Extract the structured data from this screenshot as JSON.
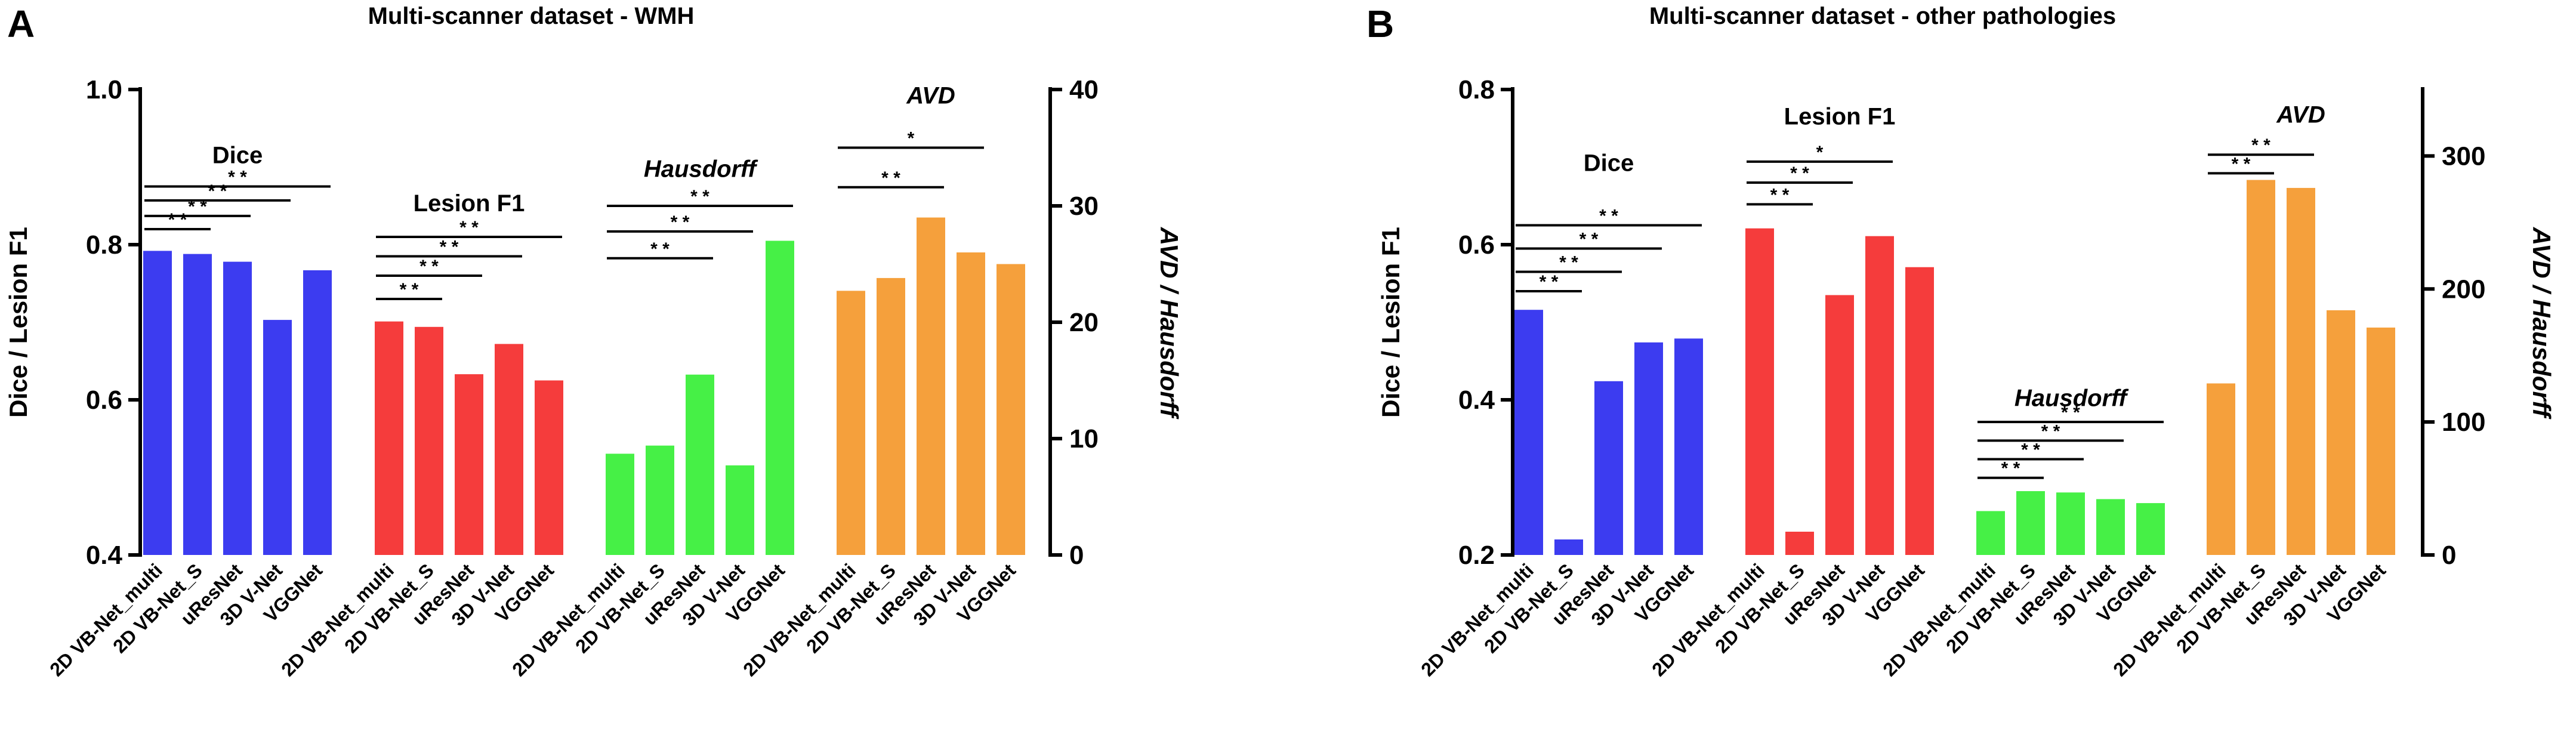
{
  "chart_data": [
    {
      "panel_letter": "A",
      "type": "bar",
      "title": "Multi-scanner dataset - WMH",
      "left_axis": {
        "label": "Dice / Lesion F1",
        "range": [
          0.4,
          1.0
        ],
        "ticks": [
          "0.4",
          "0.6",
          "0.8",
          "1.0"
        ]
      },
      "right_axis": {
        "label": "AVD / Hausdorff",
        "range": [
          0,
          40
        ],
        "ticks": [
          "0",
          "10",
          "20",
          "30",
          "40"
        ]
      },
      "groups": [
        {
          "name": "Dice",
          "italic": false,
          "axis": "left",
          "color": "#3c3cf0",
          "categories": [
            "2D VB-Net_multi",
            "2D VB-Net_S",
            "uResNet",
            "3D V-Net",
            "VGGNet"
          ],
          "values": [
            0.792,
            0.788,
            0.778,
            0.703,
            0.767
          ],
          "label_anchor": 0.905,
          "significance": [
            {
              "from": 0,
              "to": 1,
              "level": 0.82,
              "mark": "* *"
            },
            {
              "from": 0,
              "to": 2,
              "level": 0.837,
              "mark": "* *"
            },
            {
              "from": 0,
              "to": 3,
              "level": 0.857,
              "mark": "* *"
            },
            {
              "from": 0,
              "to": 4,
              "level": 0.875,
              "mark": "* *"
            }
          ]
        },
        {
          "name": "Lesion F1",
          "italic": false,
          "axis": "left",
          "color": "#f53c3c",
          "categories": [
            "2D VB-Net_multi",
            "2D VB-Net_S",
            "uResNet",
            "3D V-Net",
            "VGGNet"
          ],
          "values": [
            0.701,
            0.694,
            0.633,
            0.672,
            0.625
          ],
          "label_anchor": 0.843,
          "significance": [
            {
              "from": 0,
              "to": 1,
              "level": 0.73,
              "mark": "* *"
            },
            {
              "from": 0,
              "to": 2,
              "level": 0.76,
              "mark": "* *"
            },
            {
              "from": 0,
              "to": 3,
              "level": 0.785,
              "mark": "* *"
            },
            {
              "from": 0,
              "to": 4,
              "level": 0.81,
              "mark": "* *"
            }
          ]
        },
        {
          "name": "Hausdorff",
          "italic": true,
          "axis": "right",
          "color": "#46f046",
          "categories": [
            "2D VB-Net_multi",
            "2D VB-Net_S",
            "uResNet",
            "3D V-Net",
            "VGGNet"
          ],
          "values": [
            8.7,
            9.4,
            15.5,
            7.7,
            27.0
          ],
          "label_anchor": 32.5,
          "significance": [
            {
              "from": 0,
              "to": 2,
              "level": 25.5,
              "mark": "* *"
            },
            {
              "from": 0,
              "to": 3,
              "level": 27.8,
              "mark": "* *"
            },
            {
              "from": 0,
              "to": 4,
              "level": 30.0,
              "mark": "* *"
            }
          ]
        },
        {
          "name": "AVD",
          "italic": true,
          "axis": "right",
          "color": "#f5a03c",
          "categories": [
            "2D VB-Net_multi",
            "2D VB-Net_S",
            "uResNet",
            "3D V-Net",
            "VGGNet"
          ],
          "values": [
            22.7,
            23.8,
            29.0,
            26.0,
            25.0
          ],
          "label_anchor": 38.8,
          "significance": [
            {
              "from": 0,
              "to": 2,
              "level": 31.6,
              "mark": "* *"
            },
            {
              "from": 0,
              "to": 3,
              "level": 35.0,
              "mark": "*"
            }
          ]
        }
      ]
    },
    {
      "panel_letter": "B",
      "type": "bar",
      "title": "Multi-scanner dataset - other pathologies",
      "left_axis": {
        "label": "Dice / Lesion F1",
        "range": [
          0.2,
          0.8
        ],
        "ticks": [
          "0.2",
          "0.4",
          "0.6",
          "0.8"
        ]
      },
      "right_axis": {
        "label": "AVD / Hausdorff",
        "range": [
          0,
          350
        ],
        "ticks": [
          "0",
          "100",
          "200",
          "300"
        ]
      },
      "groups": [
        {
          "name": "Dice",
          "italic": false,
          "axis": "left",
          "color": "#3c3cf0",
          "categories": [
            "2D VB-Net_multi",
            "2D VB-Net_S",
            "uResNet",
            "3D V-Net",
            "VGGNet"
          ],
          "values": [
            0.516,
            0.22,
            0.424,
            0.474,
            0.479
          ],
          "label_anchor": 0.695,
          "significance": [
            {
              "from": 0,
              "to": 1,
              "level": 0.54,
              "mark": "* *"
            },
            {
              "from": 0,
              "to": 2,
              "level": 0.565,
              "mark": "* *"
            },
            {
              "from": 0,
              "to": 3,
              "level": 0.595,
              "mark": "* *"
            },
            {
              "from": 0,
              "to": 4,
              "level": 0.625,
              "mark": "* *"
            }
          ]
        },
        {
          "name": "Lesion F1",
          "italic": false,
          "axis": "left",
          "color": "#f53c3c",
          "categories": [
            "2D VB-Net_multi",
            "2D VB-Net_S",
            "uResNet",
            "3D V-Net",
            "VGGNet"
          ],
          "values": [
            0.621,
            0.23,
            0.535,
            0.611,
            0.571
          ],
          "label_anchor": 0.755,
          "significance": [
            {
              "from": 0,
              "to": 1,
              "level": 0.652,
              "mark": "* *"
            },
            {
              "from": 0,
              "to": 2,
              "level": 0.68,
              "mark": "* *"
            },
            {
              "from": 0,
              "to": 3,
              "level": 0.707,
              "mark": "*"
            }
          ]
        },
        {
          "name": "Hausdorff",
          "italic": true,
          "axis": "right",
          "color": "#46f046",
          "categories": [
            "2D VB-Net_multi",
            "2D VB-Net_S",
            "uResNet",
            "3D V-Net",
            "VGGNet"
          ],
          "values": [
            33,
            48,
            47,
            42,
            39
          ],
          "label_anchor": 112,
          "significance": [
            {
              "from": 0,
              "to": 1,
              "level": 58,
              "mark": "* *"
            },
            {
              "from": 0,
              "to": 2,
              "level": 72,
              "mark": "* *"
            },
            {
              "from": 0,
              "to": 3,
              "level": 86,
              "mark": "* *"
            },
            {
              "from": 0,
              "to": 4,
              "level": 100,
              "mark": "* *"
            }
          ]
        },
        {
          "name": "AVD",
          "italic": true,
          "axis": "right",
          "color": "#f5a03c",
          "categories": [
            "2D VB-Net_multi",
            "2D VB-Net_S",
            "uResNet",
            "3D V-Net",
            "VGGNet"
          ],
          "values": [
            129,
            282,
            276,
            184,
            171
          ],
          "label_anchor": 325,
          "significance": [
            {
              "from": 0,
              "to": 1,
              "level": 287,
              "mark": "* *"
            },
            {
              "from": 0,
              "to": 2,
              "level": 301,
              "mark": "* *"
            }
          ]
        }
      ]
    }
  ]
}
